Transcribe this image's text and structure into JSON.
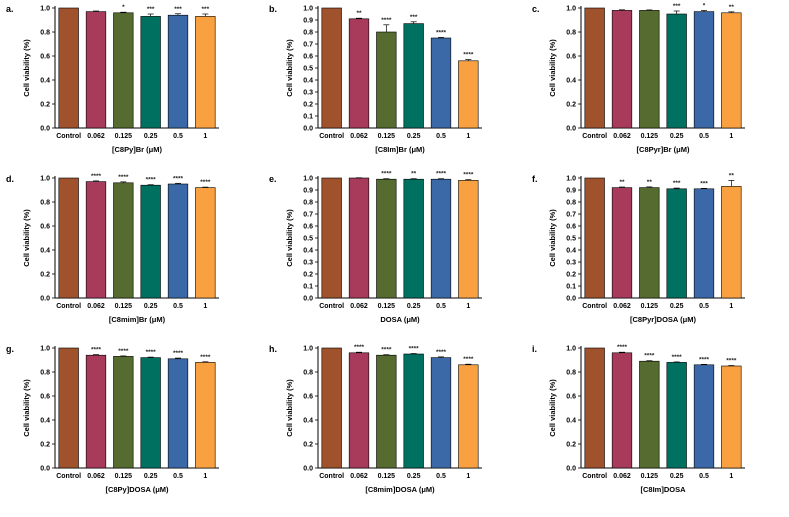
{
  "figure_title": "",
  "colors": {
    "Control": "#A0522D",
    "0.062": "#A83A5C",
    "0.125": "#556B2F",
    "0.25": "#007060",
    "0.5": "#3B69A8",
    "1": "#F9A040"
  },
  "chart_data": [
    {
      "panel": "a.",
      "type": "bar",
      "categories": [
        "Control",
        "0.062",
        "0.125",
        "0.25",
        "0.5",
        "1"
      ],
      "values": [
        1.0,
        0.97,
        0.96,
        0.93,
        0.94,
        0.93
      ],
      "errors": [
        0,
        0.005,
        0.005,
        0.02,
        0.012,
        0.02
      ],
      "significance": [
        "",
        "",
        "*",
        "***",
        "***",
        "***"
      ],
      "xlabel": "[C8Py]Br (μM)",
      "ylabel": "Cell viability (%)",
      "ylim": [
        0,
        1.0
      ],
      "yticks": [
        "0.0",
        "0.2",
        "0.4",
        "0.6",
        "0.8",
        "1.0"
      ]
    },
    {
      "panel": "b.",
      "type": "bar",
      "categories": [
        "Control",
        "0.062",
        "0.125",
        "0.25",
        "0.5",
        "1"
      ],
      "values": [
        1.0,
        0.91,
        0.8,
        0.87,
        0.75,
        0.56
      ],
      "errors": [
        0,
        0.005,
        0.06,
        0.015,
        0.005,
        0.01
      ],
      "significance": [
        "",
        "**",
        "****",
        "***",
        "****",
        "****"
      ],
      "xlabel": "[C8Im]Br (μM)",
      "ylabel": "Cell viability (%)",
      "ylim": [
        0,
        1.0
      ],
      "yticks": [
        "0.0",
        "0.1",
        "0.2",
        "0.3",
        "0.4",
        "0.5",
        "0.6",
        "0.7",
        "0.8",
        "0.9",
        "1.0"
      ]
    },
    {
      "panel": "c.",
      "type": "bar",
      "categories": [
        "Control",
        "0.062",
        "0.125",
        "0.25",
        "0.5",
        "1"
      ],
      "values": [
        1.0,
        0.98,
        0.98,
        0.95,
        0.97,
        0.96
      ],
      "errors": [
        0,
        0.005,
        0.004,
        0.025,
        0.01,
        0.008
      ],
      "significance": [
        "",
        "",
        "",
        "***",
        "*",
        "**"
      ],
      "xlabel": "[C8Pyr]Br (μM)",
      "ylabel": "Cell viability (%)",
      "ylim": [
        0,
        1.0
      ],
      "yticks": [
        "0.0",
        "0.2",
        "0.4",
        "0.6",
        "0.8",
        "1.0"
      ]
    },
    {
      "panel": "d.",
      "type": "bar",
      "categories": [
        "Control",
        "0.062",
        "0.125",
        "0.25",
        "0.5",
        "1"
      ],
      "values": [
        1.0,
        0.97,
        0.96,
        0.94,
        0.95,
        0.92
      ],
      "errors": [
        0,
        0.006,
        0.008,
        0.004,
        0.006,
        0.004
      ],
      "significance": [
        "",
        "****",
        "****",
        "****",
        "****",
        "****"
      ],
      "xlabel": "[C8mim]Br (μM)",
      "ylabel": "Cell viability (%)",
      "ylim": [
        0,
        1.0
      ],
      "yticks": [
        "0.0",
        "0.2",
        "0.4",
        "0.6",
        "0.8",
        "1.0"
      ]
    },
    {
      "panel": "e.",
      "type": "bar",
      "categories": [
        "Control",
        "0.062",
        "0.125",
        "0.25",
        "0.5",
        "1"
      ],
      "values": [
        1.0,
        1.0,
        0.99,
        0.99,
        0.99,
        0.98
      ],
      "errors": [
        0,
        0.002,
        0.004,
        0.004,
        0.004,
        0.006
      ],
      "significance": [
        "",
        "",
        "****",
        "**",
        "****",
        "****"
      ],
      "xlabel": "DOSA (μM)",
      "ylabel": "Cell viability (%)",
      "ylim": [
        0,
        1.0
      ],
      "yticks": [
        "0.0",
        "0.1",
        "0.2",
        "0.3",
        "0.4",
        "0.5",
        "0.6",
        "0.7",
        "0.8",
        "0.9",
        "1.0"
      ]
    },
    {
      "panel": "f.",
      "type": "bar",
      "categories": [
        "Control",
        "0.062",
        "0.125",
        "0.25",
        "0.5",
        "1"
      ],
      "values": [
        1.0,
        0.92,
        0.92,
        0.91,
        0.91,
        0.93
      ],
      "errors": [
        0,
        0.005,
        0.006,
        0.006,
        0.004,
        0.05
      ],
      "significance": [
        "",
        "**",
        "**",
        "***",
        "***",
        "**"
      ],
      "xlabel": "[C8Pyr]DOSA (μM)",
      "ylabel": "Cell viability (%)",
      "ylim": [
        0,
        1.0
      ],
      "yticks": [
        "0.0",
        "0.1",
        "0.2",
        "0.3",
        "0.4",
        "0.5",
        "0.6",
        "0.7",
        "0.8",
        "0.9",
        "1.0"
      ]
    },
    {
      "panel": "g.",
      "type": "bar",
      "categories": [
        "Control",
        "0.062",
        "0.125",
        "0.25",
        "0.5",
        "1"
      ],
      "values": [
        1.0,
        0.94,
        0.93,
        0.92,
        0.91,
        0.88
      ],
      "errors": [
        0,
        0.005,
        0.004,
        0.004,
        0.006,
        0.005
      ],
      "significance": [
        "",
        "****",
        "****",
        "****",
        "****",
        "****"
      ],
      "xlabel": "[C8Py]DOSA (μM)",
      "ylabel": "Cell viability (%)",
      "ylim": [
        0,
        1.0
      ],
      "yticks": [
        "0.0",
        "0.2",
        "0.4",
        "0.6",
        "0.8",
        "1.0"
      ]
    },
    {
      "panel": "h.",
      "type": "bar",
      "categories": [
        "Control",
        "0.062",
        "0.125",
        "0.25",
        "0.5",
        "1"
      ],
      "values": [
        1.0,
        0.96,
        0.94,
        0.95,
        0.92,
        0.86
      ],
      "errors": [
        0,
        0.005,
        0.004,
        0.004,
        0.006,
        0.005
      ],
      "significance": [
        "",
        "****",
        "****",
        "****",
        "****",
        "****"
      ],
      "xlabel": "[C8mim]DOSA (μM)",
      "ylabel": "Cell viability (%)",
      "ylim": [
        0,
        1.0
      ],
      "yticks": [
        "0.0",
        "0.2",
        "0.4",
        "0.6",
        "0.8",
        "1.0"
      ]
    },
    {
      "panel": "i.",
      "type": "bar",
      "categories": [
        "Control",
        "0.062",
        "0.125",
        "0.25",
        "0.5",
        "1"
      ],
      "values": [
        1.0,
        0.96,
        0.89,
        0.88,
        0.86,
        0.85
      ],
      "errors": [
        0,
        0.005,
        0.004,
        0.004,
        0.004,
        0.004
      ],
      "significance": [
        "",
        "****",
        "****",
        "****",
        "****",
        "****"
      ],
      "xlabel": "[C8Im]DOSA",
      "ylabel": "Cell viability (%)",
      "ylim": [
        0,
        1.0
      ],
      "yticks": [
        "0.0",
        "0.2",
        "0.4",
        "0.6",
        "0.8",
        "1.0"
      ]
    }
  ]
}
